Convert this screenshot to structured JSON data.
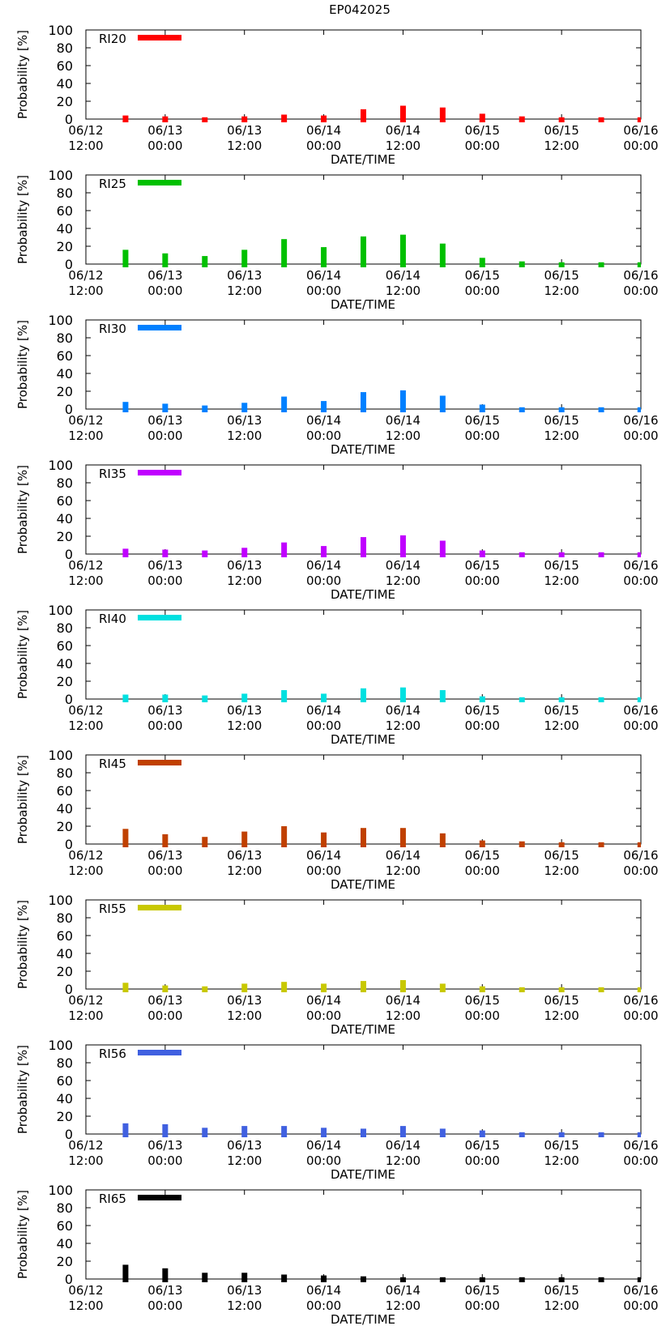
{
  "title": "EP042025",
  "chart_data": [
    {
      "type": "bar",
      "legend": "RI20",
      "color": "#ff0000",
      "values": [
        4,
        3,
        2,
        3,
        5,
        4,
        11,
        15,
        13,
        6,
        3,
        2,
        2,
        2
      ],
      "xlabel": "DATE/TIME",
      "ylabel": "Probability [%]",
      "ylim": [
        0,
        100
      ],
      "yticks": [
        "0",
        "20",
        "40",
        "60",
        "80",
        "100"
      ],
      "xticks": [
        {
          "date": "06/12",
          "time": "12:00"
        },
        {
          "date": "06/13",
          "time": "00:00"
        },
        {
          "date": "06/13",
          "time": "12:00"
        },
        {
          "date": "06/14",
          "time": "00:00"
        },
        {
          "date": "06/14",
          "time": "12:00"
        },
        {
          "date": "06/15",
          "time": "00:00"
        },
        {
          "date": "06/15",
          "time": "12:00"
        },
        {
          "date": "06/16",
          "time": "00:00"
        }
      ]
    },
    {
      "type": "bar",
      "legend": "RI25",
      "color": "#00c000",
      "values": [
        16,
        12,
        9,
        16,
        28,
        19,
        31,
        33,
        23,
        7,
        3,
        2,
        2,
        2
      ],
      "xlabel": "DATE/TIME",
      "ylabel": "Probability [%]",
      "ylim": [
        0,
        100
      ],
      "yticks": [
        "0",
        "20",
        "40",
        "60",
        "80",
        "100"
      ],
      "xticks": [
        {
          "date": "06/12",
          "time": "12:00"
        },
        {
          "date": "06/13",
          "time": "00:00"
        },
        {
          "date": "06/13",
          "time": "12:00"
        },
        {
          "date": "06/14",
          "time": "00:00"
        },
        {
          "date": "06/14",
          "time": "12:00"
        },
        {
          "date": "06/15",
          "time": "00:00"
        },
        {
          "date": "06/15",
          "time": "12:00"
        },
        {
          "date": "06/16",
          "time": "00:00"
        }
      ]
    },
    {
      "type": "bar",
      "legend": "RI30",
      "color": "#0080ff",
      "values": [
        8,
        6,
        4,
        7,
        14,
        9,
        19,
        21,
        15,
        5,
        2,
        2,
        2,
        2
      ],
      "xlabel": "DATE/TIME",
      "ylabel": "Probability [%]",
      "ylim": [
        0,
        100
      ],
      "yticks": [
        "0",
        "20",
        "40",
        "60",
        "80",
        "100"
      ],
      "xticks": [
        {
          "date": "06/12",
          "time": "12:00"
        },
        {
          "date": "06/13",
          "time": "00:00"
        },
        {
          "date": "06/13",
          "time": "12:00"
        },
        {
          "date": "06/14",
          "time": "00:00"
        },
        {
          "date": "06/14",
          "time": "12:00"
        },
        {
          "date": "06/15",
          "time": "00:00"
        },
        {
          "date": "06/15",
          "time": "12:00"
        },
        {
          "date": "06/16",
          "time": "00:00"
        }
      ]
    },
    {
      "type": "bar",
      "legend": "RI35",
      "color": "#c000ff",
      "values": [
        6,
        5,
        4,
        7,
        13,
        9,
        19,
        21,
        15,
        4,
        2,
        2,
        2,
        2
      ],
      "xlabel": "DATE/TIME",
      "ylabel": "Probability [%]",
      "ylim": [
        0,
        100
      ],
      "yticks": [
        "0",
        "20",
        "40",
        "60",
        "80",
        "100"
      ],
      "xticks": [
        {
          "date": "06/12",
          "time": "12:00"
        },
        {
          "date": "06/13",
          "time": "00:00"
        },
        {
          "date": "06/13",
          "time": "12:00"
        },
        {
          "date": "06/14",
          "time": "00:00"
        },
        {
          "date": "06/14",
          "time": "12:00"
        },
        {
          "date": "06/15",
          "time": "00:00"
        },
        {
          "date": "06/15",
          "time": "12:00"
        },
        {
          "date": "06/16",
          "time": "00:00"
        }
      ]
    },
    {
      "type": "bar",
      "legend": "RI40",
      "color": "#00e0e0",
      "values": [
        5,
        5,
        4,
        6,
        10,
        6,
        12,
        13,
        10,
        3,
        2,
        2,
        2,
        2
      ],
      "xlabel": "DATE/TIME",
      "ylabel": "Probability [%]",
      "ylim": [
        0,
        100
      ],
      "yticks": [
        "0",
        "20",
        "40",
        "60",
        "80",
        "100"
      ],
      "xticks": [
        {
          "date": "06/12",
          "time": "12:00"
        },
        {
          "date": "06/13",
          "time": "00:00"
        },
        {
          "date": "06/13",
          "time": "12:00"
        },
        {
          "date": "06/14",
          "time": "00:00"
        },
        {
          "date": "06/14",
          "time": "12:00"
        },
        {
          "date": "06/15",
          "time": "00:00"
        },
        {
          "date": "06/15",
          "time": "12:00"
        },
        {
          "date": "06/16",
          "time": "00:00"
        }
      ]
    },
    {
      "type": "bar",
      "legend": "RI45",
      "color": "#c04000",
      "values": [
        17,
        11,
        8,
        14,
        20,
        13,
        18,
        18,
        12,
        4,
        3,
        2,
        2,
        2
      ],
      "xlabel": "DATE/TIME",
      "ylabel": "Probability [%]",
      "ylim": [
        0,
        100
      ],
      "yticks": [
        "0",
        "20",
        "40",
        "60",
        "80",
        "100"
      ],
      "xticks": [
        {
          "date": "06/12",
          "time": "12:00"
        },
        {
          "date": "06/13",
          "time": "00:00"
        },
        {
          "date": "06/13",
          "time": "12:00"
        },
        {
          "date": "06/14",
          "time": "00:00"
        },
        {
          "date": "06/14",
          "time": "12:00"
        },
        {
          "date": "06/15",
          "time": "00:00"
        },
        {
          "date": "06/15",
          "time": "12:00"
        },
        {
          "date": "06/16",
          "time": "00:00"
        }
      ]
    },
    {
      "type": "bar",
      "legend": "RI55",
      "color": "#c8c800",
      "values": [
        7,
        4,
        3,
        6,
        8,
        6,
        9,
        10,
        6,
        3,
        2,
        2,
        2,
        2
      ],
      "xlabel": "DATE/TIME",
      "ylabel": "Probability [%]",
      "ylim": [
        0,
        100
      ],
      "yticks": [
        "0",
        "20",
        "40",
        "60",
        "80",
        "100"
      ],
      "xticks": [
        {
          "date": "06/12",
          "time": "12:00"
        },
        {
          "date": "06/13",
          "time": "00:00"
        },
        {
          "date": "06/13",
          "time": "12:00"
        },
        {
          "date": "06/14",
          "time": "00:00"
        },
        {
          "date": "06/14",
          "time": "12:00"
        },
        {
          "date": "06/15",
          "time": "00:00"
        },
        {
          "date": "06/15",
          "time": "12:00"
        },
        {
          "date": "06/16",
          "time": "00:00"
        }
      ]
    },
    {
      "type": "bar",
      "legend": "RI56",
      "color": "#4060e0",
      "values": [
        12,
        11,
        7,
        9,
        9,
        7,
        6,
        9,
        6,
        4,
        2,
        2,
        2,
        2
      ],
      "xlabel": "DATE/TIME",
      "ylabel": "Probability [%]",
      "ylim": [
        0,
        100
      ],
      "yticks": [
        "0",
        "20",
        "40",
        "60",
        "80",
        "100"
      ],
      "xticks": [
        {
          "date": "06/12",
          "time": "12:00"
        },
        {
          "date": "06/13",
          "time": "00:00"
        },
        {
          "date": "06/13",
          "time": "12:00"
        },
        {
          "date": "06/14",
          "time": "00:00"
        },
        {
          "date": "06/14",
          "time": "12:00"
        },
        {
          "date": "06/15",
          "time": "00:00"
        },
        {
          "date": "06/15",
          "time": "12:00"
        },
        {
          "date": "06/16",
          "time": "00:00"
        }
      ]
    },
    {
      "type": "bar",
      "legend": "RI65",
      "color": "#000000",
      "values": [
        16,
        12,
        7,
        7,
        5,
        4,
        3,
        2,
        2,
        2,
        2,
        2,
        2,
        2
      ],
      "xlabel": "DATE/TIME",
      "ylabel": "Probability [%]",
      "ylim": [
        0,
        100
      ],
      "yticks": [
        "0",
        "20",
        "40",
        "60",
        "80",
        "100"
      ],
      "xticks": [
        {
          "date": "06/12",
          "time": "12:00"
        },
        {
          "date": "06/13",
          "time": "00:00"
        },
        {
          "date": "06/13",
          "time": "12:00"
        },
        {
          "date": "06/14",
          "time": "00:00"
        },
        {
          "date": "06/14",
          "time": "12:00"
        },
        {
          "date": "06/15",
          "time": "00:00"
        },
        {
          "date": "06/15",
          "time": "12:00"
        },
        {
          "date": "06/16",
          "time": "00:00"
        }
      ]
    }
  ]
}
